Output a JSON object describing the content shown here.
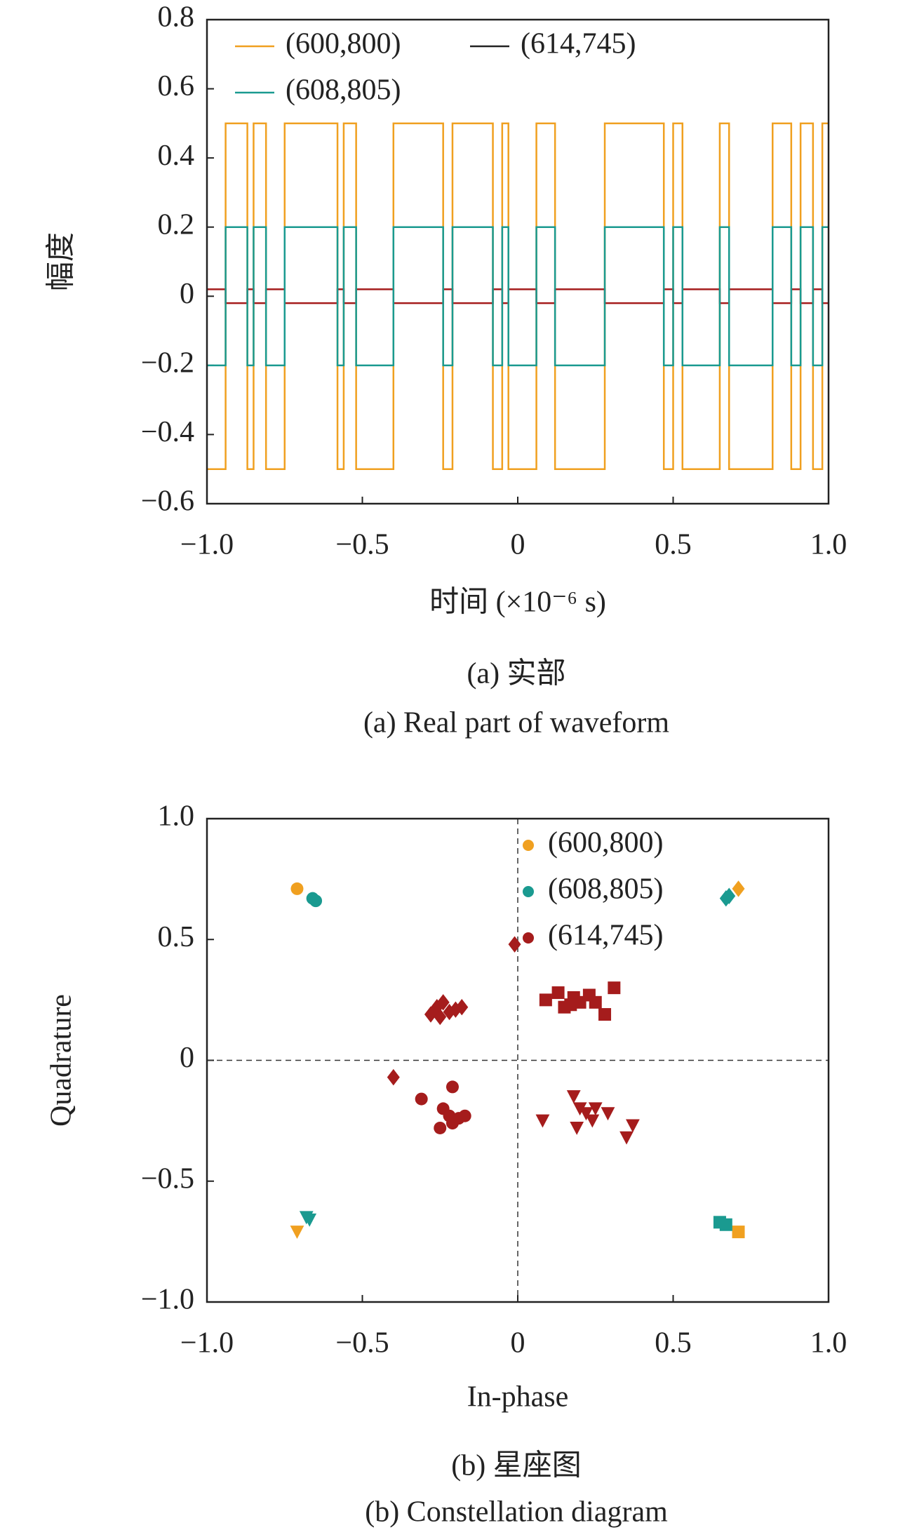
{
  "chart_data": [
    {
      "type": "line",
      "ylabel": "幅度",
      "xlabel": "时间 (×10⁻⁶ s)",
      "caption": "(a) 实部",
      "caption_en": "(a) Real part of waveform",
      "legend": "upper left",
      "legend_columns": 2,
      "xlim": [
        -1,
        1
      ],
      "ylim": [
        -0.6,
        0.8
      ],
      "xticks": [
        {
          "value": -1,
          "label": "−1.0"
        },
        {
          "value": -0.5,
          "label": "−0.5"
        },
        0,
        0.5,
        {
          "value": 1,
          "label": "1.0"
        }
      ],
      "yticks": [
        {
          "value": -0.6,
          "label": "−0.6"
        },
        {
          "value": -0.4,
          "label": "−0.4"
        },
        {
          "value": -0.2,
          "label": "−0.2"
        },
        0,
        0.2,
        0.4,
        0.6,
        0.8
      ],
      "x": [
        -1,
        -0.94,
        -0.94,
        -0.87,
        -0.87,
        -0.85,
        -0.85,
        -0.81,
        -0.81,
        -0.75,
        -0.75,
        -0.58,
        -0.58,
        -0.56,
        -0.56,
        -0.52,
        -0.52,
        -0.4,
        -0.4,
        -0.24,
        -0.24,
        -0.21,
        -0.21,
        -0.08,
        -0.08,
        -0.05,
        -0.05,
        -0.03,
        -0.03,
        0.06,
        0.06,
        0.12,
        0.12,
        0.28,
        0.28,
        0.47,
        0.47,
        0.5,
        0.5,
        0.53,
        0.53,
        0.65,
        0.65,
        0.68,
        0.68,
        0.82,
        0.82,
        0.88,
        0.88,
        0.91,
        0.91,
        0.95,
        0.95,
        0.98,
        0.98,
        1
      ],
      "series": [
        {
          "name": "(600,800)",
          "color": "#f0a020",
          "values": [
            -0.5,
            -0.5,
            0.5,
            0.5,
            -0.5,
            -0.5,
            0.5,
            0.5,
            -0.5,
            -0.5,
            0.5,
            0.5,
            -0.5,
            -0.5,
            0.5,
            0.5,
            -0.5,
            -0.5,
            0.5,
            0.5,
            -0.5,
            -0.5,
            0.5,
            0.5,
            -0.5,
            -0.5,
            0.5,
            0.5,
            -0.5,
            -0.5,
            0.5,
            0.5,
            -0.5,
            -0.5,
            0.5,
            0.5,
            -0.5,
            -0.5,
            0.5,
            0.5,
            -0.5,
            -0.5,
            0.5,
            0.5,
            -0.5,
            -0.5,
            0.5,
            0.5,
            -0.5,
            -0.5,
            0.5,
            0.5,
            -0.5,
            -0.5,
            0.5,
            0.5
          ]
        },
        {
          "name": "(614,745)",
          "color": "#a51c1c",
          "values": [
            0.02,
            0.02,
            -0.02,
            -0.02,
            0.02,
            0.02,
            -0.02,
            -0.02,
            0.02,
            0.02,
            -0.02,
            -0.02,
            0.02,
            0.02,
            -0.02,
            -0.02,
            0.02,
            0.02,
            -0.02,
            -0.02,
            0.02,
            0.02,
            -0.02,
            -0.02,
            0.02,
            0.02,
            -0.02,
            -0.02,
            0.02,
            0.02,
            -0.02,
            -0.02,
            0.02,
            0.02,
            -0.02,
            -0.02,
            0.02,
            0.02,
            -0.02,
            -0.02,
            0.02,
            0.02,
            -0.02,
            -0.02,
            0.02,
            0.02,
            -0.02,
            -0.02,
            0.02,
            0.02,
            -0.02,
            -0.02,
            0.02,
            0.02,
            -0.02,
            -0.02
          ]
        },
        {
          "name": "(608,805)",
          "color": "#1a9a90",
          "values": [
            -0.2,
            -0.2,
            0.2,
            0.2,
            -0.2,
            -0.2,
            0.2,
            0.2,
            -0.2,
            -0.2,
            0.2,
            0.2,
            -0.2,
            -0.2,
            0.2,
            0.2,
            -0.2,
            -0.2,
            0.2,
            0.2,
            -0.2,
            -0.2,
            0.2,
            0.2,
            -0.2,
            -0.2,
            0.2,
            0.2,
            -0.2,
            -0.2,
            0.2,
            0.2,
            -0.2,
            -0.2,
            0.2,
            0.2,
            -0.2,
            -0.2,
            0.2,
            0.2,
            -0.2,
            -0.2,
            0.2,
            0.2,
            -0.2,
            -0.2,
            0.2,
            0.2,
            -0.2,
            -0.2,
            0.2,
            0.2,
            -0.2,
            -0.2,
            0.2,
            0.2
          ]
        }
      ]
    },
    {
      "type": "scatter",
      "ylabel": "Quadrature",
      "xlabel": "In-phase",
      "caption": "(b) 星座图",
      "caption_en": "(b) Constellation diagram",
      "legend": "upper right",
      "legend_columns": 1,
      "zero_lines": true,
      "xlim": [
        -1,
        1
      ],
      "ylim": [
        -1,
        1
      ],
      "xticks": [
        {
          "value": -1,
          "label": "−1.0"
        },
        {
          "value": -0.5,
          "label": "−0.5"
        },
        0,
        0.5,
        {
          "value": 1,
          "label": "1.0"
        }
      ],
      "yticks": [
        {
          "value": -1,
          "label": "−1.0"
        },
        {
          "value": -0.5,
          "label": "−0.5"
        },
        0,
        0.5,
        {
          "value": 1,
          "label": "1.0"
        }
      ],
      "series": [
        {
          "name": "(600,800)",
          "color": "#f0a020",
          "x": [
            -0.71,
            0.71,
            -0.71,
            0.71
          ],
          "values": [
            0.71,
            0.71,
            -0.71,
            -0.71
          ],
          "markers": [
            "circle",
            "diamond",
            "triangle",
            "square"
          ]
        },
        {
          "name": "(608,805)",
          "color": "#1a9a90",
          "x": [
            -0.66,
            -0.65,
            0.67,
            0.68,
            -0.68,
            -0.67,
            0.65,
            0.67
          ],
          "values": [
            0.67,
            0.66,
            0.67,
            0.68,
            -0.65,
            -0.66,
            -0.67,
            -0.68
          ],
          "markers": [
            "circle",
            "circle",
            "diamond",
            "diamond",
            "triangle",
            "triangle",
            "square",
            "square"
          ]
        },
        {
          "name": "(614,745)",
          "color": "#a51c1c",
          "x": [
            -0.01,
            -0.28,
            -0.26,
            -0.24,
            -0.22,
            -0.2,
            -0.18,
            -0.25,
            -0.4,
            0.09,
            0.13,
            0.15,
            0.18,
            0.2,
            0.23,
            0.25,
            0.28,
            0.31,
            0.17,
            -0.31,
            -0.21,
            -0.24,
            -0.22,
            -0.19,
            -0.17,
            -0.25,
            -0.21,
            0.08,
            0.18,
            0.2,
            0.22,
            0.25,
            0.29,
            0.19,
            0.35,
            0.37,
            0.24
          ],
          "values": [
            0.48,
            0.19,
            0.22,
            0.24,
            0.2,
            0.21,
            0.22,
            0.18,
            -0.07,
            0.25,
            0.28,
            0.22,
            0.26,
            0.24,
            0.27,
            0.24,
            0.19,
            0.3,
            0.23,
            -0.16,
            -0.11,
            -0.2,
            -0.23,
            -0.24,
            -0.23,
            -0.28,
            -0.26,
            -0.25,
            -0.15,
            -0.2,
            -0.22,
            -0.2,
            -0.22,
            -0.28,
            -0.32,
            -0.27,
            -0.25
          ],
          "markers": [
            "diamond",
            "diamond",
            "diamond",
            "diamond",
            "diamond",
            "diamond",
            "diamond",
            "diamond",
            "diamond",
            "square",
            "square",
            "square",
            "square",
            "square",
            "square",
            "square",
            "square",
            "square",
            "square",
            "circle",
            "circle",
            "circle",
            "circle",
            "circle",
            "circle",
            "circle",
            "circle",
            "triangle",
            "triangle",
            "triangle",
            "triangle",
            "triangle",
            "triangle",
            "triangle",
            "triangle",
            "triangle",
            "triangle"
          ]
        }
      ]
    }
  ]
}
